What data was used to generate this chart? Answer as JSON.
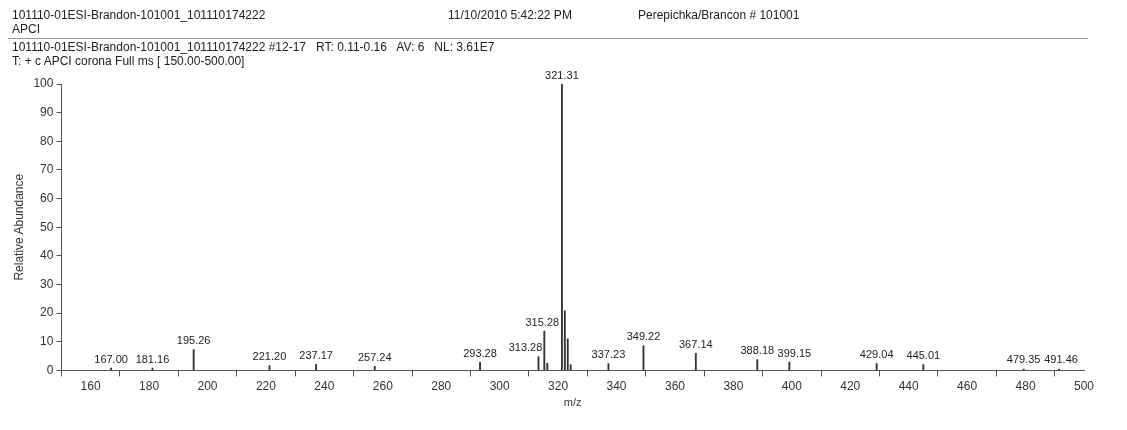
{
  "chart_data": {
    "type": "bar",
    "title": "101110-01ESI-Brandon-101001_101110174222",
    "xlabel": "m/z",
    "ylabel": "Relative Abundance",
    "x": [
      167.0,
      181.16,
      195.26,
      221.2,
      237.17,
      257.24,
      293.28,
      313.28,
      315.28,
      316.3,
      321.31,
      322.3,
      323.3,
      324.3,
      337.23,
      349.22,
      367.14,
      388.18,
      399.15,
      429.04,
      445.01,
      479.35,
      491.46
    ],
    "series": [
      {
        "color": "#333333",
        "values": [
          0.8,
          0.8,
          7.3,
          1.7,
          2.1,
          1.4,
          2.8,
          4.8,
          13.7,
          2.5,
          100,
          20.8,
          11,
          2,
          2.4,
          8.6,
          6,
          3.8,
          2.9,
          2.4,
          2,
          0.5,
          0.5
        ]
      }
    ],
    "xlim": [
      150,
      500
    ],
    "xticks": [
      160,
      180,
      200,
      220,
      240,
      260,
      280,
      300,
      320,
      340,
      360,
      380,
      400,
      420,
      440,
      460,
      480,
      500
    ],
    "ylim": [
      0,
      100
    ],
    "yticks": [
      0,
      10,
      20,
      30,
      40,
      50,
      60,
      70,
      80,
      90,
      100
    ],
    "grid": false,
    "legend": false,
    "annotations": [
      "11/10/2010 5:42:22 PM",
      "Perepichka/Brancon # 101001",
      "APCI",
      "101110-01ESI-Brandon-101001_101110174222 #12-17   RT: 0.11-0.16   AV: 6   NL: 3.61E7",
      "T: + c APCI corona Full ms [ 150.00-500.00]",
      {
        "text": "167.00",
        "x": 167.0,
        "y": 0.8
      },
      {
        "text": "181.16",
        "x": 181.16,
        "y": 0.8
      },
      {
        "text": "195.26",
        "x": 195.26,
        "y": 7.3
      },
      {
        "text": "221.20",
        "x": 221.2,
        "y": 1.7
      },
      {
        "text": "237.17",
        "x": 237.17,
        "y": 2.1
      },
      {
        "text": "257.24",
        "x": 257.24,
        "y": 1.4
      },
      {
        "text": "293.28",
        "x": 293.28,
        "y": 2.8
      },
      {
        "text": "313.28",
        "x": 313.28,
        "y": 4.8
      },
      {
        "text": "315.28",
        "x": 315.28,
        "y": 13.7
      },
      {
        "text": "321.31",
        "x": 321.31,
        "y": 100
      },
      {
        "text": "337.23",
        "x": 337.23,
        "y": 2.4
      },
      {
        "text": "349.22",
        "x": 349.22,
        "y": 8.6
      },
      {
        "text": "367.14",
        "x": 367.14,
        "y": 6
      },
      {
        "text": "388.18",
        "x": 388.18,
        "y": 3.8
      },
      {
        "text": "399.15",
        "x": 399.15,
        "y": 2.9
      },
      {
        "text": "429.04",
        "x": 429.04,
        "y": 2.4
      },
      {
        "text": "445.01",
        "x": 445.01,
        "y": 2
      },
      {
        "text": "479.35",
        "x": 479.35,
        "y": 0.5
      },
      {
        "text": "491.46",
        "x": 491.46,
        "y": 0.5
      }
    ]
  }
}
